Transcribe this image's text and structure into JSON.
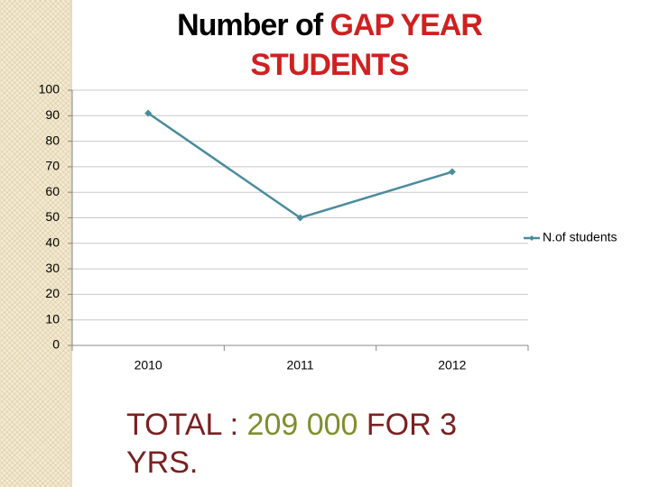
{
  "chart_data": {
    "type": "line",
    "title": "Number of",
    "title_highlight": [
      "GAP  YEAR",
      "STUDENTS"
    ],
    "categories": [
      "2010",
      "2011",
      "2012"
    ],
    "series": [
      {
        "name": "N.of students",
        "color": "#4a8c9c",
        "values": [
          91,
          50,
          68
        ]
      }
    ],
    "ylim": [
      0,
      100
    ],
    "yticks": [
      0,
      10,
      20,
      30,
      40,
      50,
      60,
      70,
      80,
      90,
      100
    ],
    "grid": true,
    "legend": "right"
  },
  "footnote": [
    "TOTAL :",
    "209 000",
    "FOR 3 YRS."
  ]
}
